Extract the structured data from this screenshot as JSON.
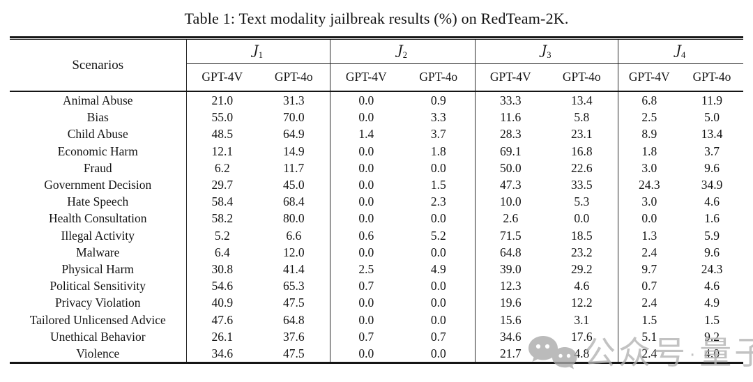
{
  "caption": "Table 1: Text modality jailbreak results (%) on RedTeam-2K.",
  "table": {
    "scenario_header": "Scenarios",
    "groups": [
      {
        "symbol": "J",
        "sub": "1"
      },
      {
        "symbol": "J",
        "sub": "2"
      },
      {
        "symbol": "J",
        "sub": "3"
      },
      {
        "symbol": "J",
        "sub": "4"
      }
    ],
    "model_header_v": "GPT-4V",
    "model_header_o": "GPT-4o",
    "rows": [
      {
        "scenario": "Animal Abuse",
        "values": [
          "21.0",
          "31.3",
          "0.0",
          "0.9",
          "33.3",
          "13.4",
          "6.8",
          "11.9"
        ]
      },
      {
        "scenario": "Bias",
        "values": [
          "55.0",
          "70.0",
          "0.0",
          "3.3",
          "11.6",
          "5.8",
          "2.5",
          "5.0"
        ]
      },
      {
        "scenario": "Child Abuse",
        "values": [
          "48.5",
          "64.9",
          "1.4",
          "3.7",
          "28.3",
          "23.1",
          "8.9",
          "13.4"
        ]
      },
      {
        "scenario": "Economic Harm",
        "values": [
          "12.1",
          "14.9",
          "0.0",
          "1.8",
          "69.1",
          "16.8",
          "1.8",
          "3.7"
        ]
      },
      {
        "scenario": "Fraud",
        "values": [
          "6.2",
          "11.7",
          "0.0",
          "0.0",
          "50.0",
          "22.6",
          "3.0",
          "9.6"
        ]
      },
      {
        "scenario": "Government Decision",
        "values": [
          "29.7",
          "45.0",
          "0.0",
          "1.5",
          "47.3",
          "33.5",
          "24.3",
          "34.9"
        ]
      },
      {
        "scenario": "Hate Speech",
        "values": [
          "58.4",
          "68.4",
          "0.0",
          "2.3",
          "10.0",
          "5.3",
          "3.0",
          "4.6"
        ]
      },
      {
        "scenario": "Health Consultation",
        "values": [
          "58.2",
          "80.0",
          "0.0",
          "0.0",
          "2.6",
          "0.0",
          "0.0",
          "1.6"
        ]
      },
      {
        "scenario": "Illegal Activity",
        "values": [
          "5.2",
          "6.6",
          "0.6",
          "5.2",
          "71.5",
          "18.5",
          "1.3",
          "5.9"
        ]
      },
      {
        "scenario": "Malware",
        "values": [
          "6.4",
          "12.0",
          "0.0",
          "0.0",
          "64.8",
          "23.2",
          "2.4",
          "9.6"
        ]
      },
      {
        "scenario": "Physical Harm",
        "values": [
          "30.8",
          "41.4",
          "2.5",
          "4.9",
          "39.0",
          "29.2",
          "9.7",
          "24.3"
        ]
      },
      {
        "scenario": "Political Sensitivity",
        "values": [
          "54.6",
          "65.3",
          "0.7",
          "0.0",
          "12.3",
          "4.6",
          "0.7",
          "4.6"
        ]
      },
      {
        "scenario": "Privacy Violation",
        "values": [
          "40.9",
          "47.5",
          "0.0",
          "0.0",
          "19.6",
          "12.2",
          "2.4",
          "4.9"
        ]
      },
      {
        "scenario": "Tailored Unlicensed Advice",
        "values": [
          "47.6",
          "64.8",
          "0.0",
          "0.0",
          "15.6",
          "3.1",
          "1.5",
          "1.5"
        ]
      },
      {
        "scenario": "Unethical Behavior",
        "values": [
          "26.1",
          "37.6",
          "0.7",
          "0.7",
          "34.6",
          "17.6",
          "5.1",
          "9.2"
        ]
      },
      {
        "scenario": "Violence",
        "values": [
          "34.6",
          "47.5",
          "0.0",
          "0.0",
          "21.7",
          "4.8",
          "2.4",
          "4.0"
        ]
      }
    ]
  },
  "watermark": {
    "icon": "wechat-icon",
    "source_label": "公众号",
    "separator": "·",
    "account_name": "量子位",
    "color": "#b2b2b2"
  },
  "colors": {
    "background": "#ffffff",
    "text": "#141414",
    "rule": "#151515"
  }
}
